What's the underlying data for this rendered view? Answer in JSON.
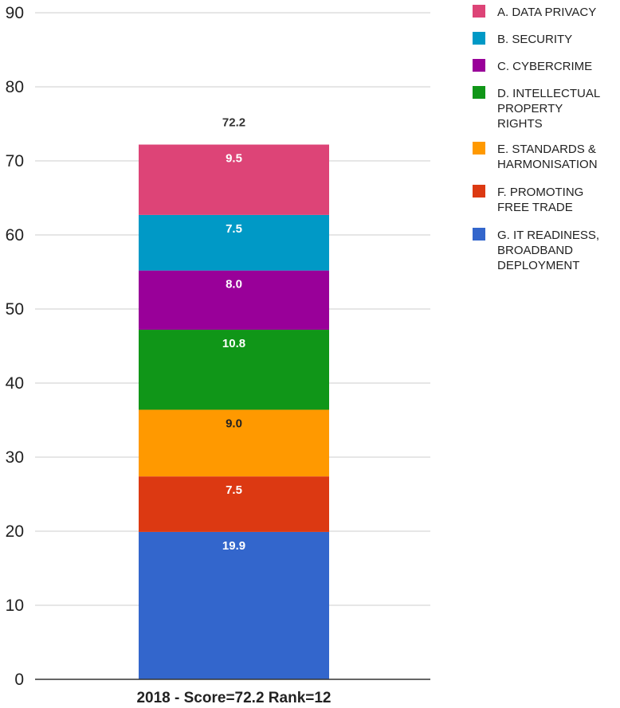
{
  "chart_data": {
    "type": "bar",
    "stacked": true,
    "categories": [
      "2018 - Score=72.2 Rank=12"
    ],
    "series": [
      {
        "name": "G. IT READINESS, BROADBAND DEPLOYMENT",
        "values": [
          19.9
        ],
        "color": "#3366cc",
        "label_color": "#ffffff"
      },
      {
        "name": "F. PROMOTING FREE TRADE",
        "values": [
          7.5
        ],
        "color": "#dc3912",
        "label_color": "#ffffff"
      },
      {
        "name": "E. STANDARDS & HARMONISATION",
        "values": [
          9.0
        ],
        "color": "#ff9900",
        "label_color": "#222222"
      },
      {
        "name": "D. INTELLECTUAL PROPERTY RIGHTS",
        "values": [
          10.8
        ],
        "color": "#109618",
        "label_color": "#ffffff"
      },
      {
        "name": "C. CYBERCRIME",
        "values": [
          8.0
        ],
        "color": "#990099",
        "label_color": "#ffffff"
      },
      {
        "name": "B. SECURITY",
        "values": [
          7.5
        ],
        "color": "#0099c6",
        "label_color": "#ffffff"
      },
      {
        "name": "A. DATA PRIVACY",
        "values": [
          9.5
        ],
        "color": "#dd4477",
        "label_color": "#ffffff"
      }
    ],
    "segment_labels": [
      "19.9",
      "7.5",
      "9.0",
      "10.8",
      "8.0",
      "7.5",
      "9.5"
    ],
    "total_label": "72.2",
    "ylim": [
      0,
      90
    ],
    "yticks": [
      0,
      10,
      20,
      30,
      40,
      50,
      60,
      70,
      80,
      90
    ],
    "grid": true,
    "legend_position": "right",
    "legend_order": [
      "A. DATA PRIVACY",
      "B. SECURITY",
      "C. CYBERCRIME",
      "D. INTELLECTUAL PROPERTY RIGHTS",
      "E. STANDARDS & HARMONISATION",
      "F. PROMOTING FREE TRADE",
      "G. IT READINESS, BROADBAND DEPLOYMENT"
    ],
    "legend_lines": [
      [
        "A. DATA PRIVACY"
      ],
      [
        "B. SECURITY"
      ],
      [
        "C. CYBERCRIME"
      ],
      [
        "D. INTELLECTUAL",
        "PROPERTY",
        "RIGHTS"
      ],
      [
        "E. STANDARDS &",
        "HARMONISATION"
      ],
      [
        "F. PROMOTING",
        "FREE TRADE"
      ],
      [
        "G. IT READINESS,",
        "BROADBAND",
        "DEPLOYMENT"
      ]
    ]
  }
}
